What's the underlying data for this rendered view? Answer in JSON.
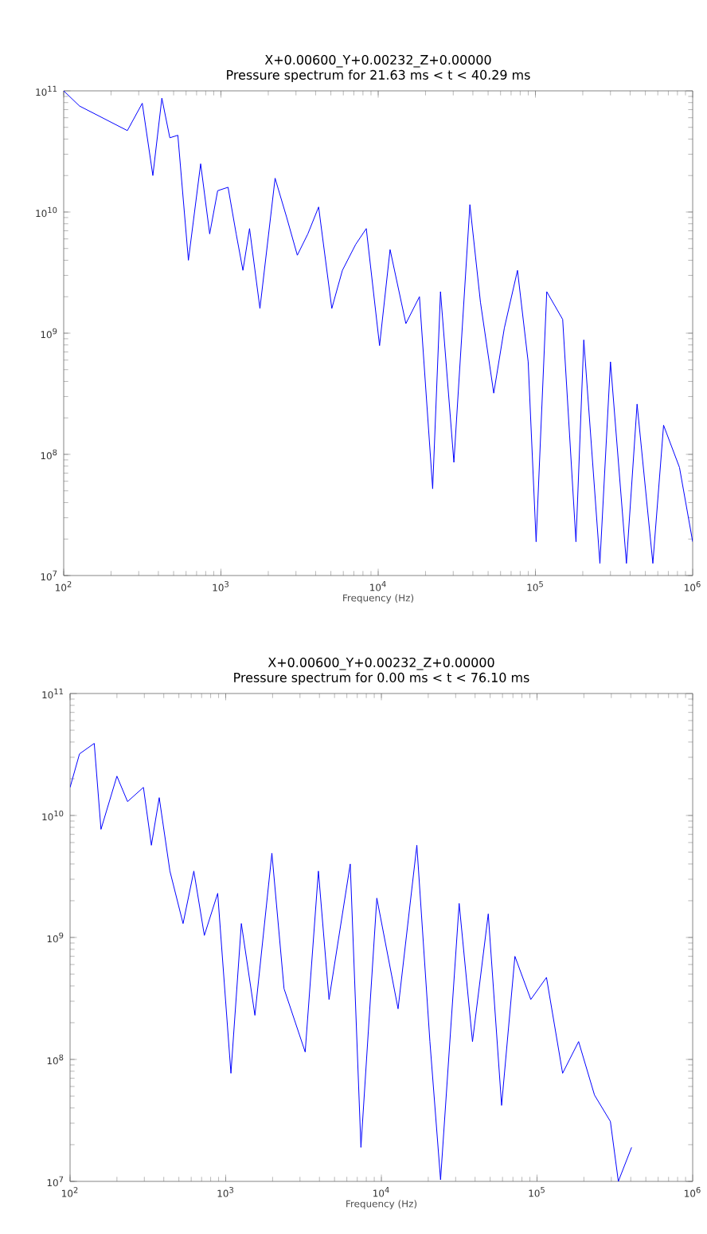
{
  "chart_data": [
    {
      "type": "line",
      "title": "X+0.00600_Y+0.00232_Z+0.00000",
      "subtitle": "Pressure spectrum for 21.63 ms < t < 40.29 ms",
      "xlabel": "Frequency (Hz)",
      "log": "xy",
      "color": "#0000ff",
      "xlim": [
        100,
        1000000
      ],
      "ylim": [
        10000000,
        100000000000
      ],
      "xticks": [
        {
          "value": 100,
          "label": "10$^{2}$"
        },
        {
          "value": 1000,
          "label": "10$^{3}$"
        },
        {
          "value": 10000,
          "label": "10$^{4}$"
        },
        {
          "value": 100000,
          "label": "10$^{5}$"
        },
        {
          "value": 1000000,
          "label": "10$^{6}$"
        }
      ],
      "yticks": [
        {
          "value": 10000000,
          "label": "10$^{7}$"
        },
        {
          "value": 100000000,
          "label": "10$^{8}$"
        },
        {
          "value": 1000000000,
          "label": "10$^{9}$"
        },
        {
          "value": 10000000000,
          "label": "10$^{10}$"
        },
        {
          "value": 100000000000,
          "label": "10$^{11}$"
        }
      ],
      "x": [
        100,
        126,
        254,
        316,
        369,
        421,
        473,
        532,
        621,
        743,
        848,
        953,
        1110,
        1250,
        1380,
        1520,
        1770,
        2210,
        2620,
        3060,
        3570,
        4180,
        5070,
        5920,
        7190,
        8400,
        10200,
        11900,
        15000,
        18300,
        22200,
        24900,
        30300,
        38300,
        44700,
        54300,
        63400,
        76900,
        89900,
        101000,
        118000,
        149000,
        181000,
        203000,
        257000,
        300000,
        379000,
        443000,
        558000,
        653000,
        824000,
        1000000
      ],
      "values": [
        100000000000.0,
        75000000000.0,
        47000000000.0,
        79000000000.0,
        20000000000.0,
        87000000000.0,
        41000000000.0,
        43000000000.0,
        4000000000.0,
        25000000000.0,
        6600000000.0,
        15000000000.0,
        16000000000.0,
        6600000000.0,
        3300000000.0,
        7300000000.0,
        1600000000.0,
        19000000000.0,
        9000000000.0,
        4400000000.0,
        6600000000.0,
        11000000000.0,
        1600000000.0,
        3300000000.0,
        5400000000.0,
        7300000000.0,
        790000000.0,
        4900000000.0,
        1200000000.0,
        2000000000.0,
        52000000.0,
        2200000000.0,
        86000000.0,
        11500000000.0,
        1800000000.0,
        320000000.0,
        1100000000.0,
        3300000000.0,
        580000000.0,
        19000000.0,
        2200000000.0,
        1300000000.0,
        19000000.0,
        880000000.0,
        12600000.0,
        580000000.0,
        12600000.0,
        260000000.0,
        12600000.0,
        174000000.0,
        78000000.0,
        19000000.0
      ]
    },
    {
      "type": "line",
      "title": "X+0.00600_Y+0.00232_Z+0.00000",
      "subtitle": "Pressure spectrum for 0.00 ms < t < 76.10 ms",
      "xlabel": "Frequency (Hz)",
      "log": "xy",
      "color": "#0000ff",
      "xlim": [
        100,
        1000000
      ],
      "ylim": [
        10000000,
        100000000000
      ],
      "xticks": [
        {
          "value": 100,
          "label": "10$^{2}$"
        },
        {
          "value": 1000,
          "label": "10$^{3}$"
        },
        {
          "value": 10000,
          "label": "10$^{4}$"
        },
        {
          "value": 100000,
          "label": "10$^{5}$"
        },
        {
          "value": 1000000,
          "label": "10$^{6}$"
        }
      ],
      "yticks": [
        {
          "value": 10000000,
          "label": "10$^{7}$"
        },
        {
          "value": 100000000,
          "label": "10$^{8}$"
        },
        {
          "value": 1000000000,
          "label": "10$^{9}$"
        },
        {
          "value": 10000000000,
          "label": "10$^{10}$"
        },
        {
          "value": 100000000000,
          "label": "10$^{11}$"
        }
      ],
      "x": [
        100,
        115,
        143,
        158,
        200,
        234,
        296,
        333,
        374,
        438,
        532,
        624,
        729,
        888,
        1080,
        1260,
        1540,
        1980,
        2370,
        3240,
        3940,
        4610,
        6310,
        7390,
        9350,
        12800,
        16900,
        20500,
        24000,
        31600,
        38500,
        48600,
        59200,
        72100,
        91200,
        115000,
        146000,
        185000,
        234000,
        296000,
        333000,
        405000
      ],
      "values": [
        17000000000.0,
        32000000000.0,
        39000000000.0,
        7700000000.0,
        21000000000.0,
        13000000000.0,
        17000000000.0,
        5700000000.0,
        14000000000.0,
        3500000000.0,
        1300000000.0,
        3500000000.0,
        1040000000.0,
        2300000000.0,
        77000000.0,
        1300000000.0,
        230000000.0,
        4900000000.0,
        380000000.0,
        115000000.0,
        3500000000.0,
        310000000.0,
        4000000000.0,
        19000000.0,
        2100000000.0,
        260000000.0,
        5700000000.0,
        140000000.0,
        10300000.0,
        1900000000.0,
        140000000.0,
        1560000000.0,
        42000000.0,
        700000000.0,
        310000000.0,
        470000000.0,
        77000000.0,
        140000000.0,
        51000000.0,
        31000000.0,
        10000000.0,
        19000000.0
      ]
    }
  ]
}
